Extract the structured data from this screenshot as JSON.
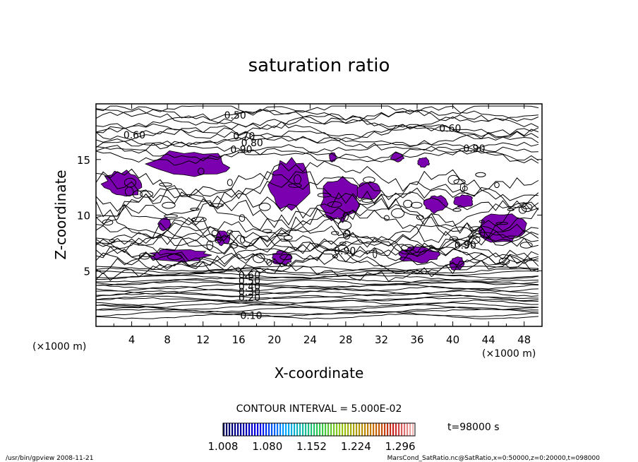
{
  "chart_data": {
    "type": "heatmap",
    "title": "saturation ratio",
    "xlabel": "X-coordinate",
    "ylabel": "Z-coordinate",
    "x_unit": "(×1000 m)",
    "z_unit": "(×1000 m)",
    "xlim": [
      0,
      50
    ],
    "ylim": [
      0,
      20
    ],
    "x_ticks": [
      "4",
      "8",
      "12",
      "16",
      "20",
      "24",
      "28",
      "32",
      "36",
      "40",
      "44",
      "48"
    ],
    "y_ticks": [
      "5",
      "10",
      "15"
    ],
    "contour_interval": "CONTOUR INTERVAL = 5.000E-02",
    "contour_labels": [
      {
        "text": "0.50",
        "x": 15.6,
        "z": 19.0
      },
      {
        "text": "0.60",
        "x": 4.3,
        "z": 17.2
      },
      {
        "text": "0.60",
        "x": 39.7,
        "z": 17.8
      },
      {
        "text": "0.70",
        "x": 16.6,
        "z": 17.1
      },
      {
        "text": "0.80",
        "x": 17.5,
        "z": 16.5
      },
      {
        "text": "0.90",
        "x": 16.3,
        "z": 15.9
      },
      {
        "text": "0.90",
        "x": 42.4,
        "z": 16.0
      },
      {
        "text": "0.90",
        "x": 27.9,
        "z": 6.8
      },
      {
        "text": "0.90",
        "x": 41.4,
        "z": 7.3
      },
      {
        "text": "0.10",
        "x": 17.4,
        "z": 1.0
      },
      {
        "text": "0.20",
        "x": 17.2,
        "z": 2.6
      },
      {
        "text": "0.30",
        "x": 17.2,
        "z": 3.1
      },
      {
        "text": "0.40",
        "x": 17.2,
        "z": 3.6
      },
      {
        "text": "0.50",
        "x": 17.2,
        "z": 4.1
      },
      {
        "text": "0.60",
        "x": 17.2,
        "z": 4.6
      }
    ],
    "supersaturated_regions": [
      {
        "x": [
          5.6,
          15.2
        ],
        "z": [
          13.4,
          15.8
        ]
      },
      {
        "x": [
          0.8,
          5.4
        ],
        "z": [
          11.6,
          14.0
        ]
      },
      {
        "x": [
          19.3,
          23.9
        ],
        "z": [
          10.3,
          15.1
        ]
      },
      {
        "x": [
          25.2,
          29.5
        ],
        "z": [
          9.4,
          13.5
        ]
      },
      {
        "x": [
          42.7,
          48.2
        ],
        "z": [
          7.5,
          10.2
        ]
      },
      {
        "x": [
          33.7,
          38.5
        ],
        "z": [
          5.7,
          7.2
        ]
      },
      {
        "x": [
          6.0,
          12.7
        ],
        "z": [
          5.8,
          7.0
        ]
      },
      {
        "x": [
          19.7,
          22.0
        ],
        "z": [
          5.5,
          6.8
        ]
      },
      {
        "x": [
          29.0,
          32.0
        ],
        "z": [
          11.4,
          13.0
        ]
      },
      {
        "x": [
          36.8,
          39.4
        ],
        "z": [
          10.2,
          11.8
        ]
      },
      {
        "x": [
          40.0,
          42.4
        ],
        "z": [
          10.7,
          11.8
        ]
      },
      {
        "x": [
          6.9,
          8.4
        ],
        "z": [
          8.6,
          9.8
        ]
      },
      {
        "x": [
          39.6,
          41.3
        ],
        "z": [
          5.0,
          6.3
        ]
      },
      {
        "x": [
          13.4,
          15.0
        ],
        "z": [
          7.3,
          8.6
        ]
      },
      {
        "x": [
          33.0,
          34.5
        ],
        "z": [
          14.8,
          15.6
        ]
      },
      {
        "x": [
          26.1,
          27.0
        ],
        "z": [
          14.8,
          15.6
        ]
      },
      {
        "x": [
          36.0,
          37.4
        ],
        "z": [
          14.3,
          15.2
        ]
      }
    ],
    "colorbar": {
      "min": 1.008,
      "max": 1.32,
      "tick_labels": [
        "1.008",
        "1.080",
        "1.152",
        "1.224",
        "1.296"
      ]
    },
    "time_label": "t=98000 s",
    "colors": {
      "supersaturated_fill": "#7b00b0",
      "contour": "#000000",
      "background": "#ffffff"
    }
  },
  "footer": {
    "left": "/usr/bin/gpview   2008-11-21",
    "right": "MarsCond_SatRatio.nc@SatRatio,x=0:50000,z=0:20000,t=098000"
  }
}
